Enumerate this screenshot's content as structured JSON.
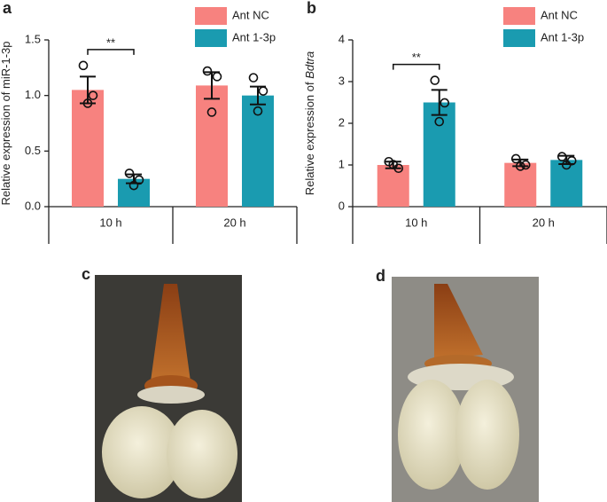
{
  "chart_data": [
    {
      "type": "bar",
      "panel_label": "a",
      "ylabel": "Relative expression of miR-1-3p",
      "categories": [
        "10 h",
        "20 h"
      ],
      "series": [
        {
          "name": "Ant NC",
          "color": "#f7827f",
          "values": [
            1.05,
            1.09
          ],
          "errors": [
            0.12,
            0.12
          ],
          "points": [
            [
              1.27,
              1.0,
              0.93
            ],
            [
              1.22,
              1.17,
              0.85
            ]
          ]
        },
        {
          "name": "Ant 1-3p",
          "color": "#1a9bb0",
          "values": [
            0.25,
            1.0
          ],
          "errors": [
            0.04,
            0.08
          ],
          "points": [
            [
              0.3,
              0.24,
              0.19
            ],
            [
              1.16,
              1.04,
              0.86
            ]
          ]
        }
      ],
      "significance": {
        "label": "**",
        "category": 0
      },
      "ylim": [
        0,
        1.5
      ],
      "yticks": [
        {
          "value": 0,
          "label": "0.0"
        },
        0.5,
        {
          "value": 1,
          "label": "1.0"
        },
        1.5
      ]
    },
    {
      "type": "bar",
      "panel_label": "b",
      "ylabel": "Relative expression of ",
      "ylabel_gene": "Bdtra",
      "categories": [
        "10 h",
        "20 h"
      ],
      "series": [
        {
          "name": "Ant NC",
          "color": "#f7827f",
          "values": [
            1.0,
            1.05
          ],
          "errors": [
            0.08,
            0.08
          ],
          "points": [
            [
              1.08,
              0.92,
              1.01
            ],
            [
              1.15,
              1.0,
              0.97
            ]
          ]
        },
        {
          "name": "Ant 1-3p",
          "color": "#1a9bb0",
          "values": [
            2.5,
            1.12
          ],
          "errors": [
            0.3,
            0.1
          ],
          "points": [
            [
              3.03,
              2.49,
              2.04
            ],
            [
              1.2,
              1.1,
              1.0
            ]
          ]
        }
      ],
      "significance": {
        "label": "**",
        "category": 0
      },
      "ylim": [
        0,
        4
      ],
      "yticks": [
        0,
        1,
        2,
        3,
        4
      ]
    }
  ],
  "photos": [
    {
      "panel_label": "c"
    },
    {
      "panel_label": "d"
    }
  ]
}
